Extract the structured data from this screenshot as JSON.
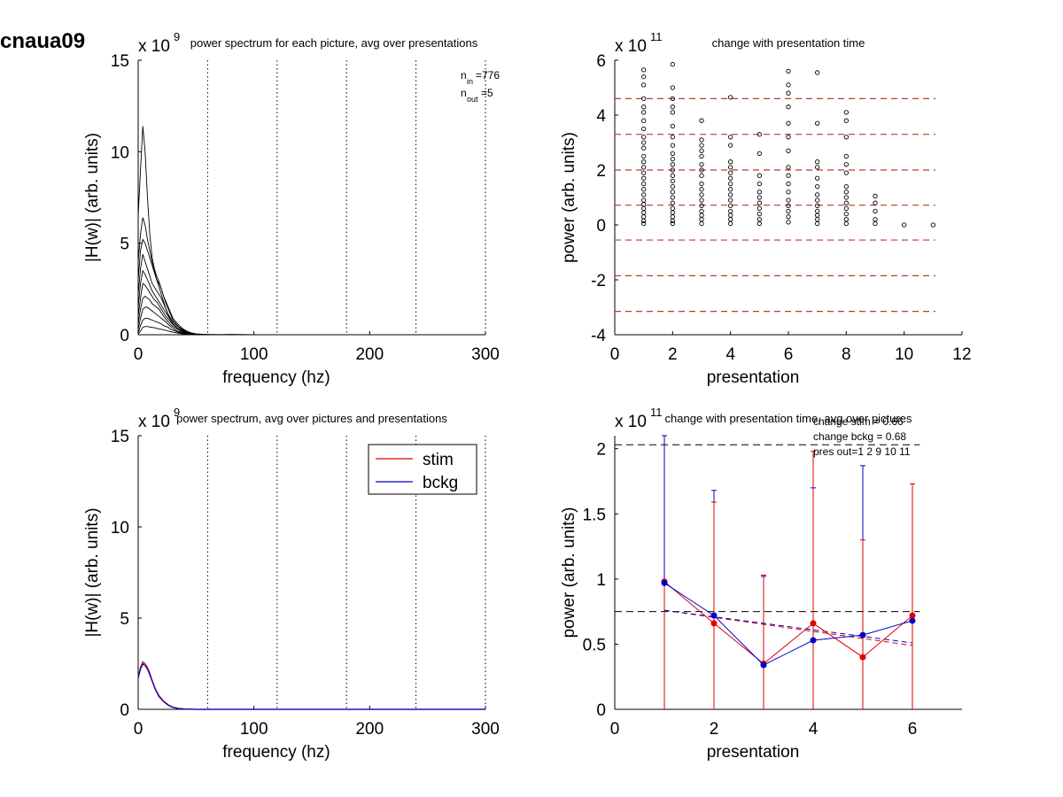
{
  "figure": {
    "id_label": "cnaua09"
  },
  "colors": {
    "axes": "#000000",
    "stim": "#e00000",
    "bckg": "#0000c8",
    "threshold": "#c0392b"
  },
  "chart_data": [
    {
      "type": "line",
      "title": "power spectrum for each picture, avg over presentations",
      "xlabel": "frequency (hz)",
      "ylabel": "|H(w)| (arb. units)",
      "y_exponent": "x 10",
      "y_exponent_power": "9",
      "xlim": [
        0,
        300
      ],
      "ylim": [
        0,
        15
      ],
      "xticks": [
        0,
        100,
        200,
        300
      ],
      "yticks": [
        0,
        5,
        10,
        15
      ],
      "vlines": [
        60,
        120,
        180,
        240,
        300
      ],
      "annotation": {
        "n_in_label": "n",
        "n_in_sub": "in",
        "n_in_value": "=776",
        "n_out_label": "n",
        "n_out_sub": "out",
        "n_out_value": "=5"
      },
      "x": [
        0,
        2,
        4,
        6,
        8,
        10,
        12,
        14,
        16,
        18,
        20,
        22,
        24,
        26,
        28,
        30,
        34,
        38,
        42,
        46,
        50,
        56,
        62,
        70,
        80,
        100,
        150,
        200,
        250,
        300
      ],
      "series": [
        {
          "values": [
            6.5,
            9.0,
            11.4,
            10.0,
            7.5,
            5.5,
            4.2,
            3.6,
            3.2,
            2.9,
            2.5,
            2.1,
            1.7,
            1.4,
            1.1,
            0.8,
            0.5,
            0.3,
            0.15,
            0.08,
            0.04,
            0.02,
            0.01,
            0.01,
            0.02,
            0.0,
            0.0,
            0.0,
            0.0,
            0.0
          ]
        },
        {
          "values": [
            4.0,
            5.5,
            6.4,
            6.0,
            5.2,
            4.6,
            4.0,
            3.5,
            3.0,
            2.6,
            2.2,
            1.8,
            1.4,
            1.1,
            0.8,
            0.6,
            0.35,
            0.2,
            0.1,
            0.05,
            0.03,
            0.01,
            0.01,
            0.0,
            0.0,
            0.0,
            0.0,
            0.0,
            0.0,
            0.0
          ]
        },
        {
          "values": [
            3.0,
            4.6,
            5.2,
            5.0,
            4.6,
            4.2,
            3.8,
            3.4,
            3.0,
            2.8,
            2.5,
            2.1,
            1.8,
            1.5,
            1.2,
            0.9,
            0.6,
            0.35,
            0.2,
            0.1,
            0.05,
            0.02,
            0.01,
            0.0,
            0.0,
            0.0,
            0.0,
            0.0,
            0.0,
            0.0
          ]
        },
        {
          "values": [
            2.2,
            3.6,
            4.4,
            4.0,
            3.6,
            3.2,
            2.8,
            2.6,
            2.4,
            2.2,
            2.0,
            1.7,
            1.4,
            1.1,
            0.9,
            0.7,
            0.45,
            0.25,
            0.12,
            0.06,
            0.03,
            0.01,
            0.0,
            0.0,
            0.0,
            0.0,
            0.0,
            0.0,
            0.0,
            0.0
          ]
        },
        {
          "values": [
            1.5,
            2.8,
            3.5,
            3.3,
            3.0,
            2.7,
            2.4,
            2.2,
            2.0,
            1.8,
            1.6,
            1.4,
            1.2,
            1.0,
            0.8,
            0.6,
            0.35,
            0.2,
            0.1,
            0.05,
            0.02,
            0.01,
            0.0,
            0.0,
            0.0,
            0.0,
            0.0,
            0.0,
            0.0,
            0.0
          ]
        },
        {
          "values": [
            1.0,
            2.0,
            2.8,
            2.7,
            2.5,
            2.3,
            2.1,
            1.9,
            1.8,
            1.6,
            1.4,
            1.2,
            1.0,
            0.85,
            0.7,
            0.55,
            0.35,
            0.2,
            0.1,
            0.05,
            0.02,
            0.01,
            0.0,
            0.0,
            0.0,
            0.0,
            0.0,
            0.0,
            0.0,
            0.0
          ]
        },
        {
          "values": [
            0.6,
            1.4,
            2.0,
            2.1,
            2.0,
            1.9,
            1.7,
            1.6,
            1.5,
            1.4,
            1.2,
            1.0,
            0.85,
            0.7,
            0.55,
            0.45,
            0.3,
            0.15,
            0.08,
            0.04,
            0.02,
            0.0,
            0.0,
            0.0,
            0.0,
            0.0,
            0.0,
            0.0,
            0.0,
            0.0
          ]
        },
        {
          "values": [
            0.3,
            0.9,
            1.4,
            1.5,
            1.5,
            1.4,
            1.3,
            1.2,
            1.1,
            1.0,
            0.9,
            0.8,
            0.7,
            0.55,
            0.45,
            0.35,
            0.2,
            0.12,
            0.06,
            0.03,
            0.01,
            0.0,
            0.0,
            0.0,
            0.0,
            0.0,
            0.0,
            0.0,
            0.0,
            0.0
          ]
        },
        {
          "values": [
            0.1,
            0.5,
            0.8,
            0.9,
            0.9,
            0.85,
            0.8,
            0.75,
            0.7,
            0.65,
            0.6,
            0.5,
            0.45,
            0.4,
            0.3,
            0.25,
            0.15,
            0.08,
            0.04,
            0.02,
            0.01,
            0.0,
            0.0,
            0.0,
            0.0,
            0.0,
            0.0,
            0.0,
            0.0,
            0.0
          ]
        },
        {
          "values": [
            0.05,
            0.2,
            0.4,
            0.45,
            0.45,
            0.42,
            0.4,
            0.38,
            0.35,
            0.32,
            0.3,
            0.27,
            0.24,
            0.2,
            0.17,
            0.14,
            0.09,
            0.05,
            0.02,
            0.01,
            0.0,
            0.0,
            0.0,
            0.0,
            0.0,
            0.0,
            0.0,
            0.0,
            0.0,
            0.0
          ]
        }
      ]
    },
    {
      "type": "scatter",
      "title": "change with presentation time",
      "xlabel": "presentation",
      "ylabel": "power (arb. units)",
      "y_exponent": "x 10",
      "y_exponent_power": "11",
      "xlim": [
        0,
        12
      ],
      "ylim": [
        -4,
        6
      ],
      "xticks": [
        0,
        2,
        4,
        6,
        8,
        10,
        12
      ],
      "yticks": [
        -4,
        -2,
        0,
        2,
        4,
        6
      ],
      "hlines": [
        4.6,
        3.3,
        2.0,
        0.72,
        -0.55,
        -1.85,
        -3.15
      ],
      "points": [
        {
          "x": 1,
          "y": [
            5.65,
            5.4,
            5.1,
            4.6,
            4.3,
            4.1,
            3.8,
            3.5,
            3.2,
            3.0,
            2.8,
            2.5,
            2.3,
            2.1,
            1.9,
            1.7,
            1.5,
            1.3,
            1.1,
            0.9,
            0.75,
            0.6,
            0.45,
            0.3,
            0.15,
            0.05
          ]
        },
        {
          "x": 2,
          "y": [
            5.85,
            5.0,
            4.6,
            4.3,
            4.1,
            3.6,
            3.2,
            2.9,
            2.6,
            2.4,
            2.2,
            2.0,
            1.8,
            1.6,
            1.4,
            1.2,
            1.0,
            0.8,
            0.6,
            0.45,
            0.3,
            0.15,
            0.05
          ]
        },
        {
          "x": 3,
          "y": [
            3.8,
            3.1,
            2.9,
            2.7,
            2.5,
            2.2,
            2.0,
            1.8,
            1.5,
            1.3,
            1.1,
            0.9,
            0.7,
            0.5,
            0.35,
            0.2,
            0.05
          ]
        },
        {
          "x": 4,
          "y": [
            4.65,
            3.2,
            2.9,
            2.3,
            2.1,
            1.9,
            1.7,
            1.5,
            1.3,
            1.1,
            0.9,
            0.7,
            0.5,
            0.35,
            0.2,
            0.05
          ]
        },
        {
          "x": 5,
          "y": [
            3.3,
            2.6,
            1.8,
            1.5,
            1.2,
            1.0,
            0.8,
            0.6,
            0.4,
            0.2,
            0.05
          ]
        },
        {
          "x": 6,
          "y": [
            5.6,
            5.1,
            4.8,
            4.3,
            3.7,
            3.2,
            2.7,
            2.1,
            1.8,
            1.5,
            1.2,
            0.9,
            0.7,
            0.5,
            0.3,
            0.1
          ]
        },
        {
          "x": 7,
          "y": [
            5.55,
            3.7,
            2.3,
            2.1,
            1.7,
            1.4,
            1.1,
            0.9,
            0.7,
            0.5,
            0.35,
            0.2,
            0.05
          ]
        },
        {
          "x": 8,
          "y": [
            4.1,
            3.8,
            3.2,
            2.5,
            2.2,
            1.9,
            1.4,
            1.2,
            1.0,
            0.8,
            0.6,
            0.4,
            0.2,
            0.05
          ]
        },
        {
          "x": 9,
          "y": [
            1.05,
            0.8,
            0.5,
            0.2,
            0.05
          ]
        },
        {
          "x": 10,
          "y": [
            0.0
          ]
        },
        {
          "x": 11,
          "y": [
            0.0
          ]
        }
      ]
    },
    {
      "type": "line",
      "title": "power spectrum, avg over pictures and presentations",
      "xlabel": "frequency (hz)",
      "ylabel": "|H(w)| (arb. units)",
      "y_exponent": "x 10",
      "y_exponent_power": "9",
      "xlim": [
        0,
        300
      ],
      "ylim": [
        0,
        15
      ],
      "xticks": [
        0,
        100,
        200,
        300
      ],
      "yticks": [
        0,
        5,
        10,
        15
      ],
      "vlines": [
        60,
        120,
        180,
        240,
        300
      ],
      "legend": [
        "stim",
        "bckg"
      ],
      "x": [
        0,
        2,
        4,
        6,
        8,
        10,
        12,
        15,
        18,
        22,
        26,
        30,
        35,
        40,
        50,
        60,
        100,
        200,
        300
      ],
      "series": [
        {
          "name": "stim",
          "values": [
            1.8,
            2.3,
            2.6,
            2.5,
            2.3,
            2.0,
            1.6,
            1.1,
            0.75,
            0.45,
            0.25,
            0.12,
            0.05,
            0.02,
            0.0,
            0.0,
            0.0,
            0.0,
            0.0
          ]
        },
        {
          "name": "bckg",
          "values": [
            1.7,
            2.2,
            2.5,
            2.4,
            2.2,
            1.9,
            1.55,
            1.05,
            0.7,
            0.42,
            0.22,
            0.1,
            0.04,
            0.02,
            0.0,
            0.0,
            0.0,
            0.0,
            0.0
          ]
        }
      ]
    },
    {
      "type": "line",
      "title": "change with presentation time, avg over pictures",
      "xlabel": "presentation",
      "ylabel": "power (arb. units)",
      "y_exponent": "x 10",
      "y_exponent_power": "11",
      "xlim": [
        0,
        7
      ],
      "ylim": [
        0,
        2.1
      ],
      "xticks": [
        0,
        2,
        4,
        6
      ],
      "yticks": [
        0,
        0.5,
        1,
        1.5,
        2
      ],
      "ytick_labels": [
        "0",
        "0.5",
        "1",
        "1.5",
        "2"
      ],
      "notes": [
        "change stim = 0.66",
        "change bckg = 0.68",
        "pres out=1 2 9 10 11"
      ],
      "hlines_dashed": [
        2.03,
        0.75
      ],
      "x": [
        1,
        2,
        3,
        4,
        5,
        6
      ],
      "series": [
        {
          "name": "stim",
          "values": [
            0.98,
            0.66,
            0.35,
            0.66,
            0.4,
            0.72
          ],
          "err_top": [
            0.98,
            1.59,
            1.03,
            1.98,
            1.3,
            1.73
          ]
        },
        {
          "name": "bckg",
          "values": [
            0.97,
            0.72,
            0.34,
            0.53,
            0.57,
            0.68
          ],
          "err_top": [
            2.1,
            1.68,
            1.02,
            1.7,
            1.87,
            1.73
          ]
        }
      ],
      "trend": [
        {
          "name": "stim",
          "from": [
            1,
            0.76
          ],
          "to": [
            6,
            0.49
          ]
        },
        {
          "name": "bckg",
          "from": [
            1,
            0.76
          ],
          "to": [
            6,
            0.51
          ]
        }
      ]
    }
  ]
}
